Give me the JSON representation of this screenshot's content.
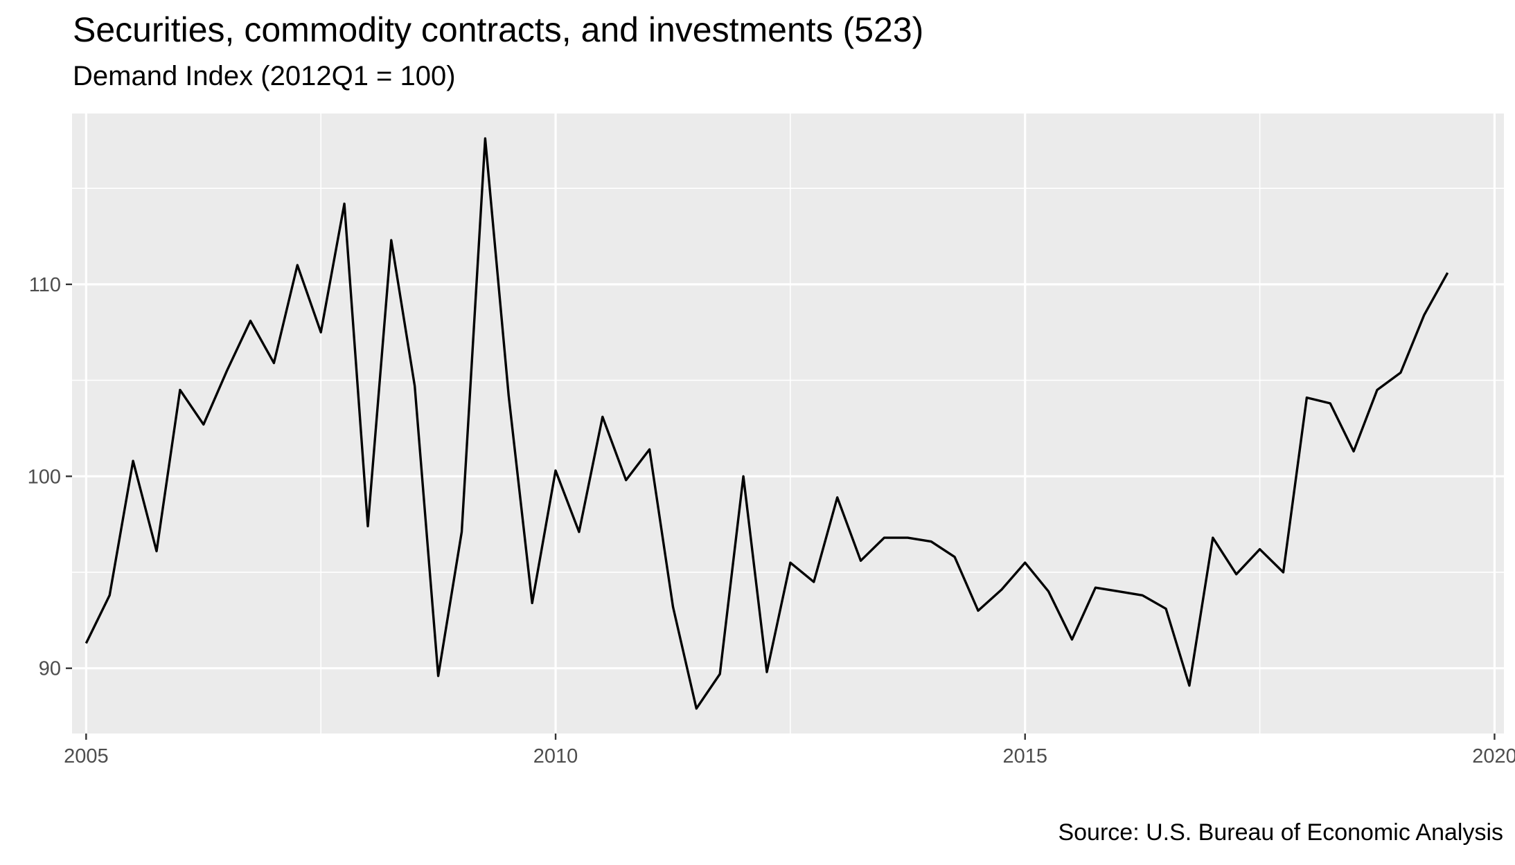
{
  "title": "Securities, commodity contracts, and investments (523)",
  "subtitle": "Demand Index (2012Q1 = 100)",
  "caption": "Source: U.S. Bureau of Economic Analysis",
  "colors": {
    "panel": "#EBEBEB",
    "grid": "#FFFFFF",
    "line": "#000000",
    "tick_text": "#4D4D4D"
  },
  "chart_data": {
    "type": "line",
    "title": "Securities, commodity contracts, and investments (523)",
    "subtitle": "Demand Index (2012Q1 = 100)",
    "xlabel": "",
    "ylabel": "",
    "xlim": [
      2004.85,
      2020.1
    ],
    "ylim": [
      86.6,
      118.9
    ],
    "x_ticks": [
      2005,
      2010,
      2015,
      2020
    ],
    "x_tick_labels": [
      "2005",
      "2010",
      "2015",
      "2020"
    ],
    "y_ticks": [
      90,
      100,
      110
    ],
    "y_tick_labels": [
      "90",
      "100",
      "110"
    ],
    "grid": true,
    "legend": "none",
    "series": [
      {
        "x": [
          2005.0,
          2005.25,
          2005.5,
          2005.75,
          2006.0,
          2006.25,
          2006.5,
          2006.75,
          2007.0,
          2007.25,
          2007.5,
          2007.75,
          2008.0,
          2008.25,
          2008.5,
          2008.75,
          2009.0,
          2009.25,
          2009.5,
          2009.75,
          2010.0,
          2010.25,
          2010.5,
          2010.75,
          2011.0,
          2011.25,
          2011.5,
          2011.75,
          2012.0,
          2012.25,
          2012.5,
          2012.75,
          2013.0,
          2013.25,
          2013.5,
          2013.75,
          2014.0,
          2014.25,
          2014.5,
          2014.75,
          2015.0,
          2015.25,
          2015.5,
          2015.75,
          2016.0,
          2016.25,
          2016.5,
          2016.75,
          2017.0,
          2017.25,
          2017.5,
          2017.75,
          2018.0,
          2018.25,
          2018.5,
          2018.75,
          2019.0,
          2019.25,
          2019.5
        ],
        "y": [
          91.3,
          93.8,
          100.8,
          96.1,
          104.5,
          102.7,
          105.5,
          108.1,
          105.9,
          111.0,
          107.5,
          114.2,
          97.4,
          112.3,
          104.7,
          89.6,
          97.1,
          117.6,
          104.2,
          93.4,
          100.3,
          97.1,
          103.1,
          99.8,
          101.4,
          93.2,
          87.9,
          89.7,
          100.0,
          89.8,
          95.5,
          94.5,
          98.9,
          95.6,
          96.8,
          96.8,
          96.6,
          95.8,
          93.0,
          94.1,
          95.5,
          94.0,
          91.5,
          94.2,
          94.0,
          93.8,
          93.1,
          89.1,
          96.8,
          94.9,
          96.2,
          95.0,
          104.1,
          103.8,
          101.3,
          104.5,
          105.4,
          108.4,
          110.6
        ]
      }
    ]
  }
}
